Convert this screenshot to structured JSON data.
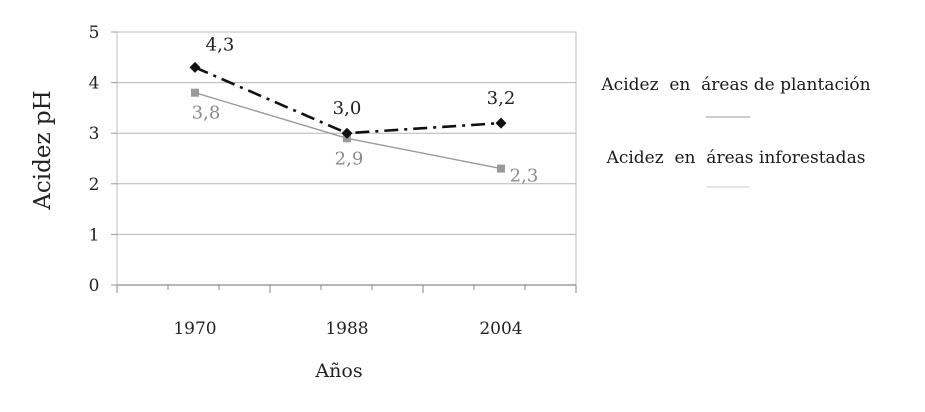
{
  "chart_data": {
    "type": "line",
    "categories": [
      "1970",
      "1988",
      "2004"
    ],
    "ylabel": "Acidez pH",
    "xlabel": "Años",
    "ylim": [
      0,
      5
    ],
    "yticks": [
      "0",
      "1",
      "2",
      "3",
      "4",
      "5"
    ],
    "grid": true,
    "legend_position": "right",
    "series": [
      {
        "name": "Acidez  en  áreas de plantación",
        "values": [
          4.3,
          3.0,
          3.2
        ],
        "labels": [
          "4,3",
          "3,0",
          "3,2"
        ],
        "color": "#111111",
        "line_style": "dash-dot",
        "marker": "diamond"
      },
      {
        "name": "Acidez  en  áreas inforestadas",
        "values": [
          3.8,
          2.9,
          2.3
        ],
        "labels": [
          "3,8",
          "2,9",
          "2,3"
        ],
        "color": "#9a9a9a",
        "line_style": "solid",
        "marker": "square"
      }
    ]
  }
}
